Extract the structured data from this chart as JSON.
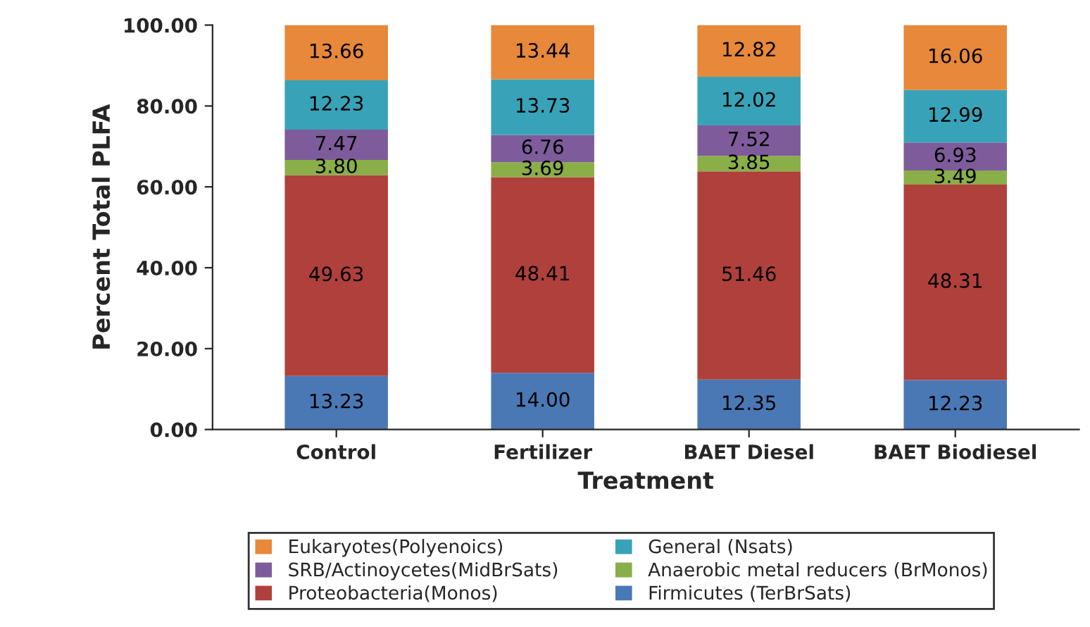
{
  "chart_data": {
    "type": "bar",
    "stacked": true,
    "xlabel": "Treatment",
    "ylabel": "Percent Total PLFA",
    "categories": [
      "Control",
      "Fertilizer",
      "BAET Diesel",
      "BAET Biodiesel"
    ],
    "ylim": [
      0,
      100
    ],
    "yticks": [
      {
        "value": 0,
        "label": "0.00"
      },
      {
        "value": 20,
        "label": "20.00"
      },
      {
        "value": 40,
        "label": "40.00"
      },
      {
        "value": 60,
        "label": "60.00"
      },
      {
        "value": 80,
        "label": "80.00"
      },
      {
        "value": 100,
        "label": "100.00"
      }
    ],
    "grid": false,
    "legend": "bottom",
    "series": [
      {
        "name": "Firmicutes (TerBrSats)",
        "color": "#4a78b5",
        "values": [
          13.23,
          14.0,
          12.35,
          12.23
        ],
        "value_labels": [
          "13.23",
          "14.00",
          "12.35",
          "12.23"
        ]
      },
      {
        "name": "Proteobacteria(Monos)",
        "color": "#b0403c",
        "values": [
          49.63,
          48.41,
          51.46,
          48.31
        ],
        "value_labels": [
          "49.63",
          "48.41",
          "51.46",
          "48.31"
        ]
      },
      {
        "name": "Anaerobic metal reducers (BrMonos)",
        "color": "#8aae48",
        "values": [
          3.8,
          3.69,
          3.85,
          3.49
        ],
        "value_labels": [
          "3.80",
          "3.69",
          "3.85",
          "3.49"
        ]
      },
      {
        "name": "SRB/Actinoycetes(MidBrSats)",
        "color": "#7e5c9b",
        "values": [
          7.47,
          6.76,
          7.52,
          6.93
        ],
        "value_labels": [
          "7.47",
          "6.76",
          "7.52",
          "6.93"
        ]
      },
      {
        "name": "General (Nsats)",
        "color": "#38a3b8",
        "values": [
          12.23,
          13.73,
          12.02,
          12.99
        ],
        "value_labels": [
          "12.23",
          "13.73",
          "12.02",
          "12.99"
        ]
      },
      {
        "name": "Eukaryotes(Polyenoics)",
        "color": "#e8883a",
        "values": [
          13.66,
          13.44,
          12.82,
          16.06
        ],
        "value_labels": [
          "13.66",
          "13.44",
          "12.82",
          "16.06"
        ]
      }
    ]
  }
}
